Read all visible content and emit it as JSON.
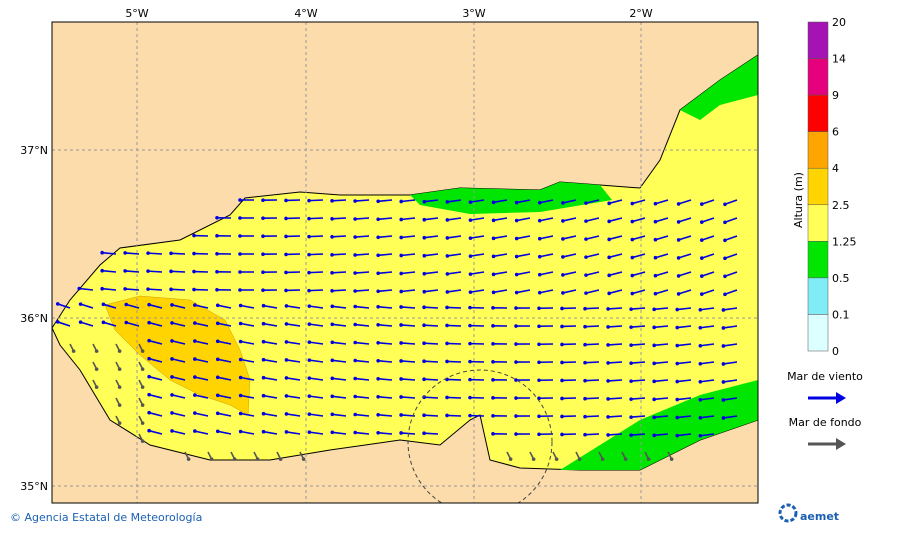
{
  "map": {
    "lon_labels": [
      "5°W",
      "4°W",
      "3°W",
      "2°W"
    ],
    "lat_labels": [
      "37°N",
      "36°N",
      "35°N"
    ]
  },
  "colorbar": {
    "title": "Altura (m)",
    "labels": [
      "20",
      "14",
      "9",
      "6",
      "4",
      "2.5",
      "1.25",
      "0.5",
      "0.1",
      "0"
    ],
    "colors": [
      "#a513b4",
      "#e5007d",
      "#ff0000",
      "#ffa500",
      "#ffd400",
      "#ffff57",
      "#00e600",
      "#80ecf6",
      "#dcffff"
    ]
  },
  "legend": {
    "items": [
      {
        "label": "Mar de viento",
        "color": "#0000e0"
      },
      {
        "label": "Mar de fondo",
        "color": "#555555"
      }
    ]
  },
  "footer": {
    "credit": "© Agencia Estatal de Meteorología",
    "logo": "aemet"
  }
}
